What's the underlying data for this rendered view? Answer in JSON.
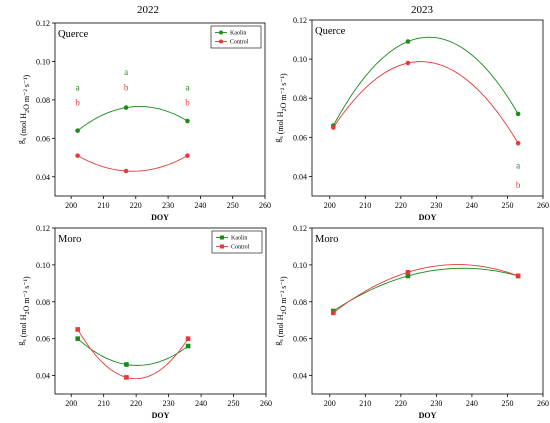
{
  "column_titles": [
    "2022",
    "2023"
  ],
  "chart_data": [
    {
      "type": "line",
      "panel_title": "Querce",
      "year": "2022",
      "xlabel": "DOY",
      "ylabel": "gs (mol H2O m⁻² s⁻¹)",
      "xlim": [
        195,
        260
      ],
      "ylim": [
        0.03,
        0.12
      ],
      "xticks": [
        200,
        210,
        220,
        230,
        240,
        250,
        260
      ],
      "yticks": [
        0.04,
        0.06,
        0.08,
        0.1,
        0.12
      ],
      "xtick_labels": [
        "200",
        "210",
        "220",
        "230",
        "240",
        "250",
        "260"
      ],
      "ytick_labels": [
        "0.04",
        "0.06",
        "0.08",
        "0.10",
        "0.12"
      ],
      "marker": "circle",
      "legend": {
        "show": true,
        "position": "top-right",
        "entries": [
          "Kaolin",
          "Control"
        ]
      },
      "series": [
        {
          "name": "Kaolin",
          "color": "#1a8a1a",
          "x": [
            202,
            217,
            236
          ],
          "y": [
            0.064,
            0.076,
            0.069
          ]
        },
        {
          "name": "Control",
          "color": "#e8393a",
          "x": [
            202,
            217,
            236
          ],
          "y": [
            0.051,
            0.043,
            0.051
          ]
        }
      ],
      "annotations": [
        {
          "text": "a",
          "color": "#1a8a1a",
          "x": 202,
          "y": 0.085
        },
        {
          "text": "b",
          "color": "#e8393a",
          "x": 202,
          "y": 0.077
        },
        {
          "text": "a",
          "color": "#1a8a1a",
          "x": 217,
          "y": 0.093
        },
        {
          "text": "b",
          "color": "#e8393a",
          "x": 217,
          "y": 0.085
        },
        {
          "text": "a",
          "color": "#1a8a1a",
          "x": 236,
          "y": 0.085
        },
        {
          "text": "b",
          "color": "#e8393a",
          "x": 236,
          "y": 0.077
        }
      ]
    },
    {
      "type": "line",
      "panel_title": "Querce",
      "year": "2023",
      "xlabel": "DOY",
      "ylabel": "gs (mol H2O m⁻² s⁻¹)",
      "xlim": [
        195,
        260
      ],
      "ylim": [
        0.03,
        0.12
      ],
      "xticks": [
        200,
        210,
        220,
        230,
        240,
        250,
        260
      ],
      "yticks": [
        0.04,
        0.06,
        0.08,
        0.1,
        0.12
      ],
      "xtick_labels": [
        "200",
        "210",
        "220",
        "230",
        "240",
        "250",
        "260"
      ],
      "ytick_labels": [
        "0.04",
        "0.06",
        "0.08",
        "0.10",
        "0.12"
      ],
      "marker": "circle",
      "legend": {
        "show": false
      },
      "series": [
        {
          "name": "Kaolin",
          "color": "#1a8a1a",
          "x": [
            201,
            222,
            253
          ],
          "y": [
            0.066,
            0.109,
            0.072
          ]
        },
        {
          "name": "Control",
          "color": "#e8393a",
          "x": [
            201,
            222,
            253
          ],
          "y": [
            0.065,
            0.098,
            0.057
          ]
        }
      ],
      "annotations": [
        {
          "text": "a",
          "color": "#1a8a1a",
          "x": 253,
          "y": 0.044
        },
        {
          "text": "b",
          "color": "#e8393a",
          "x": 253,
          "y": 0.034
        }
      ]
    },
    {
      "type": "line",
      "panel_title": "Moro",
      "year": "2022",
      "xlabel": "DOY",
      "ylabel": "gs (mol H2O m⁻² s⁻¹)",
      "xlim": [
        195,
        260
      ],
      "ylim": [
        0.03,
        0.12
      ],
      "xticks": [
        200,
        210,
        220,
        230,
        240,
        250,
        260
      ],
      "yticks": [
        0.04,
        0.06,
        0.08,
        0.1,
        0.12
      ],
      "xtick_labels": [
        "200",
        "210",
        "220",
        "230",
        "240",
        "250",
        "260"
      ],
      "ytick_labels": [
        "0.04",
        "0.06",
        "0.08",
        "0.10",
        "0.12"
      ],
      "marker": "square",
      "legend": {
        "show": true,
        "position": "top-right",
        "entries": [
          "Kaolin",
          "Control"
        ]
      },
      "series": [
        {
          "name": "Kaolin",
          "color": "#1a8a1a",
          "x": [
            202,
            217,
            236
          ],
          "y": [
            0.06,
            0.046,
            0.056
          ]
        },
        {
          "name": "Control",
          "color": "#e8393a",
          "x": [
            202,
            217,
            236
          ],
          "y": [
            0.065,
            0.039,
            0.06
          ]
        }
      ],
      "annotations": []
    },
    {
      "type": "line",
      "panel_title": "Moro",
      "year": "2023",
      "xlabel": "DOY",
      "ylabel": "gs (mol H2O m⁻² s⁻¹)",
      "xlim": [
        195,
        260
      ],
      "ylim": [
        0.03,
        0.12
      ],
      "xticks": [
        200,
        210,
        220,
        230,
        240,
        250,
        260
      ],
      "yticks": [
        0.04,
        0.06,
        0.08,
        0.1,
        0.12
      ],
      "xtick_labels": [
        "200",
        "210",
        "220",
        "230",
        "240",
        "250",
        "260"
      ],
      "ytick_labels": [
        "0.04",
        "0.06",
        "0.08",
        "0.10",
        "0.12"
      ],
      "marker": "square",
      "legend": {
        "show": false
      },
      "series": [
        {
          "name": "Kaolin",
          "color": "#1a8a1a",
          "x": [
            201,
            222,
            253
          ],
          "y": [
            0.075,
            0.094,
            0.094
          ]
        },
        {
          "name": "Control",
          "color": "#e8393a",
          "x": [
            201,
            222,
            253
          ],
          "y": [
            0.074,
            0.096,
            0.094
          ]
        }
      ],
      "annotations": []
    }
  ]
}
